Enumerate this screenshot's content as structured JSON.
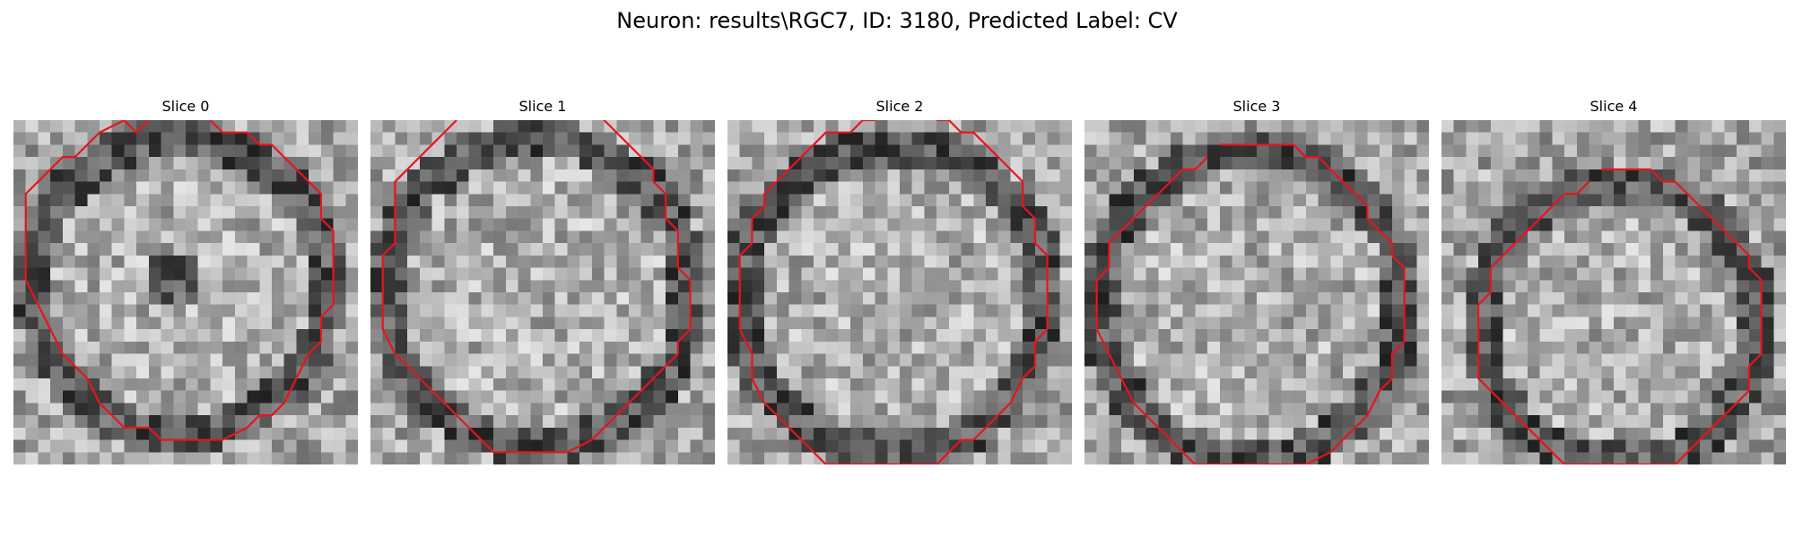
{
  "figure": {
    "title": "Neuron: results\\RGC7, ID: 3180, Predicted Label: CV"
  },
  "contour_color": "#e8141c",
  "panels": [
    {
      "title": "Slice 0",
      "icon": "grayscale-neuron-image",
      "contour": [
        [
          16,
          0
        ],
        [
          17,
          1
        ],
        [
          19,
          1
        ],
        [
          20,
          2
        ],
        [
          21,
          2
        ],
        [
          23,
          4
        ],
        [
          24,
          5
        ],
        [
          25,
          6
        ],
        [
          25,
          8
        ],
        [
          26,
          9
        ],
        [
          26,
          15
        ],
        [
          25,
          16
        ],
        [
          25,
          18
        ],
        [
          24,
          19
        ],
        [
          23,
          21
        ],
        [
          22,
          23
        ],
        [
          21,
          24
        ],
        [
          20,
          24
        ],
        [
          19,
          25
        ],
        [
          17,
          26
        ],
        [
          12,
          26
        ],
        [
          11,
          25
        ],
        [
          9,
          25
        ],
        [
          8,
          24
        ],
        [
          7,
          23
        ],
        [
          6,
          21
        ],
        [
          5,
          20
        ],
        [
          4,
          19
        ],
        [
          3,
          17
        ],
        [
          2,
          15
        ],
        [
          1,
          13
        ],
        [
          1,
          6
        ],
        [
          2,
          5
        ],
        [
          3,
          4
        ],
        [
          4,
          3
        ],
        [
          5,
          3
        ],
        [
          6,
          2
        ],
        [
          7,
          1
        ],
        [
          9,
          0
        ],
        [
          10,
          1
        ],
        [
          11,
          0
        ]
      ]
    },
    {
      "title": "Slice 1",
      "icon": "grayscale-neuron-image",
      "contour": [
        [
          19,
          0
        ],
        [
          20,
          1
        ],
        [
          21,
          2
        ],
        [
          22,
          3
        ],
        [
          23,
          4
        ],
        [
          23,
          5
        ],
        [
          24,
          6
        ],
        [
          24,
          8
        ],
        [
          25,
          9
        ],
        [
          25,
          12
        ],
        [
          26,
          13
        ],
        [
          26,
          17
        ],
        [
          25,
          18
        ],
        [
          25,
          19
        ],
        [
          24,
          20
        ],
        [
          23,
          21
        ],
        [
          22,
          22
        ],
        [
          21,
          23
        ],
        [
          20,
          24
        ],
        [
          19,
          25
        ],
        [
          18,
          26
        ],
        [
          16,
          27
        ],
        [
          10,
          27
        ],
        [
          9,
          26
        ],
        [
          8,
          25
        ],
        [
          7,
          24
        ],
        [
          6,
          23
        ],
        [
          5,
          22
        ],
        [
          4,
          21
        ],
        [
          3,
          20
        ],
        [
          2,
          19
        ],
        [
          1,
          17
        ],
        [
          1,
          11
        ],
        [
          2,
          10
        ],
        [
          2,
          5
        ],
        [
          3,
          4
        ],
        [
          4,
          3
        ],
        [
          5,
          2
        ],
        [
          6,
          1
        ],
        [
          7,
          0
        ]
      ]
    },
    {
      "title": "Slice 2",
      "icon": "grayscale-neuron-image",
      "contour": [
        [
          17,
          0
        ],
        [
          18,
          0
        ],
        [
          19,
          1
        ],
        [
          20,
          1
        ],
        [
          21,
          2
        ],
        [
          22,
          3
        ],
        [
          23,
          4
        ],
        [
          24,
          5
        ],
        [
          24,
          7
        ],
        [
          25,
          8
        ],
        [
          25,
          10
        ],
        [
          26,
          11
        ],
        [
          26,
          17
        ],
        [
          25,
          18
        ],
        [
          25,
          20
        ],
        [
          24,
          21
        ],
        [
          23,
          23
        ],
        [
          22,
          24
        ],
        [
          21,
          25
        ],
        [
          20,
          26
        ],
        [
          19,
          26
        ],
        [
          18,
          27
        ],
        [
          17,
          28
        ],
        [
          8,
          28
        ],
        [
          7,
          27
        ],
        [
          6,
          26
        ],
        [
          5,
          25
        ],
        [
          4,
          24
        ],
        [
          3,
          23
        ],
        [
          2,
          21
        ],
        [
          2,
          19
        ],
        [
          1,
          17
        ],
        [
          1,
          11
        ],
        [
          2,
          10
        ],
        [
          2,
          8
        ],
        [
          3,
          7
        ],
        [
          3,
          6
        ],
        [
          4,
          5
        ],
        [
          5,
          4
        ],
        [
          6,
          3
        ],
        [
          7,
          2
        ],
        [
          8,
          1
        ],
        [
          10,
          1
        ],
        [
          11,
          0
        ],
        [
          12,
          0
        ]
      ]
    },
    {
      "title": "Slice 3",
      "icon": "grayscale-neuron-image",
      "contour": [
        [
          11,
          2
        ],
        [
          17,
          2
        ],
        [
          18,
          3
        ],
        [
          19,
          3
        ],
        [
          20,
          4
        ],
        [
          21,
          5
        ],
        [
          22,
          6
        ],
        [
          23,
          7
        ],
        [
          23,
          8
        ],
        [
          24,
          9
        ],
        [
          25,
          10
        ],
        [
          25,
          11
        ],
        [
          26,
          12
        ],
        [
          26,
          18
        ],
        [
          25,
          19
        ],
        [
          25,
          21
        ],
        [
          24,
          22
        ],
        [
          23,
          24
        ],
        [
          22,
          25
        ],
        [
          21,
          26
        ],
        [
          20,
          27
        ],
        [
          18,
          28
        ],
        [
          9,
          28
        ],
        [
          8,
          27
        ],
        [
          7,
          26
        ],
        [
          6,
          25
        ],
        [
          5,
          24
        ],
        [
          4,
          23
        ],
        [
          3,
          21
        ],
        [
          2,
          19
        ],
        [
          1,
          17
        ],
        [
          1,
          13
        ],
        [
          2,
          12
        ],
        [
          2,
          10
        ],
        [
          3,
          9
        ],
        [
          4,
          8
        ],
        [
          5,
          7
        ],
        [
          6,
          6
        ],
        [
          7,
          5
        ],
        [
          8,
          4
        ],
        [
          9,
          4
        ],
        [
          10,
          3
        ]
      ]
    },
    {
      "title": "Slice 4",
      "icon": "grayscale-neuron-image",
      "contour": [
        [
          13,
          4
        ],
        [
          17,
          4
        ],
        [
          18,
          5
        ],
        [
          19,
          5
        ],
        [
          20,
          6
        ],
        [
          21,
          7
        ],
        [
          22,
          8
        ],
        [
          23,
          9
        ],
        [
          24,
          10
        ],
        [
          25,
          11
        ],
        [
          25,
          12
        ],
        [
          26,
          13
        ],
        [
          26,
          19
        ],
        [
          25,
          20
        ],
        [
          25,
          22
        ],
        [
          24,
          23
        ],
        [
          23,
          24
        ],
        [
          22,
          25
        ],
        [
          21,
          26
        ],
        [
          20,
          27
        ],
        [
          19,
          28
        ],
        [
          10,
          28
        ],
        [
          9,
          27
        ],
        [
          8,
          26
        ],
        [
          7,
          25
        ],
        [
          6,
          24
        ],
        [
          5,
          23
        ],
        [
          4,
          22
        ],
        [
          3,
          21
        ],
        [
          3,
          15
        ],
        [
          4,
          14
        ],
        [
          4,
          12
        ],
        [
          5,
          11
        ],
        [
          6,
          10
        ],
        [
          7,
          9
        ],
        [
          8,
          8
        ],
        [
          9,
          7
        ],
        [
          10,
          6
        ],
        [
          11,
          6
        ],
        [
          12,
          5
        ]
      ]
    }
  ]
}
